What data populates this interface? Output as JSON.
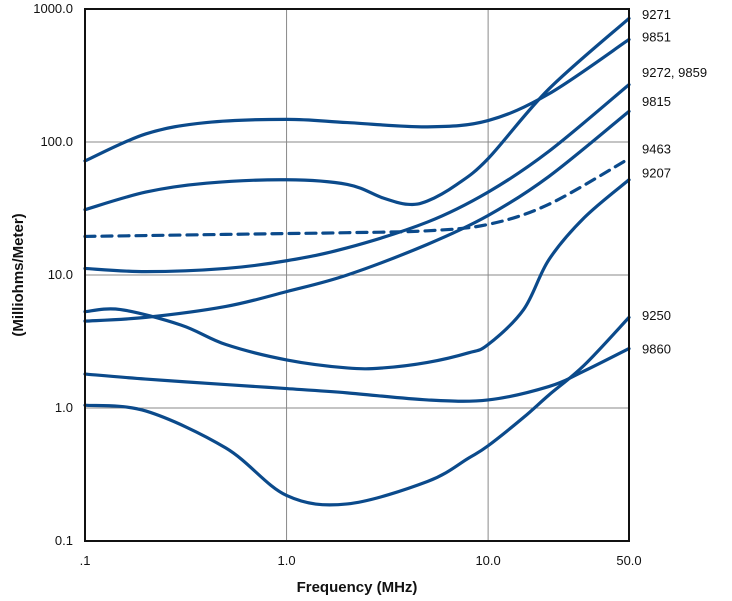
{
  "chart_data": {
    "type": "line",
    "xlabel": "Frequency (MHz)",
    "ylabel": "(Milliohms/Meter)",
    "x_scale": "log",
    "y_scale": "log",
    "xlim": [
      0.1,
      50.0
    ],
    "ylim": [
      0.1,
      1000.0
    ],
    "grid": true,
    "line_color": "#0b4a8b",
    "x_ticks": [
      {
        "value": 0.1,
        "label": ".1"
      },
      {
        "value": 1.0,
        "label": "1.0"
      },
      {
        "value": 10.0,
        "label": "10.0"
      },
      {
        "value": 50.0,
        "label": "50.0"
      }
    ],
    "y_ticks": [
      {
        "value": 1000.0,
        "label": "1000.0"
      },
      {
        "value": 100.0,
        "label": "100.0"
      },
      {
        "value": 10.0,
        "label": "10.0"
      },
      {
        "value": 1.0,
        "label": "1.0"
      },
      {
        "value": 0.1,
        "label": "0.1"
      }
    ],
    "series": [
      {
        "name": "9271",
        "dashed": false,
        "x": [
          0.1,
          0.2,
          0.4,
          1.0,
          2.0,
          3.0,
          4.0,
          5.0,
          7.0,
          10.0,
          20.0,
          50.0
        ],
        "y": [
          31,
          42,
          49,
          52,
          48,
          38,
          34,
          36,
          48,
          75,
          250,
          850
        ]
      },
      {
        "name": "9851",
        "dashed": false,
        "x": [
          0.1,
          0.2,
          0.4,
          1.0,
          2.0,
          5.0,
          10.0,
          20.0,
          50.0
        ],
        "y": [
          72,
          115,
          140,
          148,
          140,
          130,
          145,
          230,
          590
        ]
      },
      {
        "name": "9272, 9859",
        "dashed": false,
        "x": [
          0.1,
          0.2,
          0.5,
          1.0,
          2.0,
          5.0,
          10.0,
          20.0,
          50.0
        ],
        "y": [
          11.2,
          10.6,
          11.2,
          12.8,
          16,
          25,
          42,
          85,
          270
        ]
      },
      {
        "name": "9815",
        "dashed": false,
        "x": [
          0.1,
          0.2,
          0.5,
          1.0,
          2.0,
          5.0,
          10.0,
          20.0,
          50.0
        ],
        "y": [
          4.5,
          4.8,
          5.8,
          7.5,
          10,
          17,
          28,
          55,
          170
        ]
      },
      {
        "name": "9463",
        "dashed": true,
        "x": [
          0.1,
          0.2,
          0.5,
          1.0,
          2.0,
          5.0,
          10.0,
          20.0,
          50.0
        ],
        "y": [
          19.5,
          19.8,
          20.2,
          20.5,
          20.8,
          21.5,
          24,
          34,
          75
        ]
      },
      {
        "name": "9207",
        "dashed": false,
        "x": [
          0.1,
          0.15,
          0.3,
          0.5,
          1.0,
          2.0,
          3.0,
          5.0,
          8.0,
          10.0,
          15.0,
          20.0,
          30.0,
          50.0
        ],
        "y": [
          5.3,
          5.5,
          4.2,
          3.0,
          2.3,
          2.0,
          2.0,
          2.2,
          2.6,
          3.0,
          5.5,
          13,
          27,
          52
        ]
      },
      {
        "name": "9250",
        "dashed": false,
        "x": [
          0.1,
          0.2,
          0.5,
          1.0,
          2.0,
          5.0,
          8.0,
          10.0,
          15.0,
          20.0,
          30.0,
          50.0
        ],
        "y": [
          1.05,
          0.95,
          0.5,
          0.22,
          0.19,
          0.28,
          0.42,
          0.52,
          0.85,
          1.25,
          2.1,
          4.8
        ]
      },
      {
        "name": "9860",
        "dashed": false,
        "x": [
          0.1,
          0.2,
          0.5,
          1.0,
          2.0,
          5.0,
          10.0,
          20.0,
          30.0,
          50.0
        ],
        "y": [
          1.8,
          1.65,
          1.5,
          1.4,
          1.3,
          1.15,
          1.15,
          1.45,
          1.9,
          2.8
        ]
      }
    ],
    "series_labels": [
      {
        "name": "9271",
        "value": 900
      },
      {
        "name": "9851",
        "value": 610
      },
      {
        "name": "9272, 9859",
        "value": 330
      },
      {
        "name": "9815",
        "value": 200
      },
      {
        "name": "9463",
        "value": 88
      },
      {
        "name": "9207",
        "value": 58
      },
      {
        "name": "9250",
        "value": 4.9
      },
      {
        "name": "9860",
        "value": 2.75
      }
    ]
  }
}
